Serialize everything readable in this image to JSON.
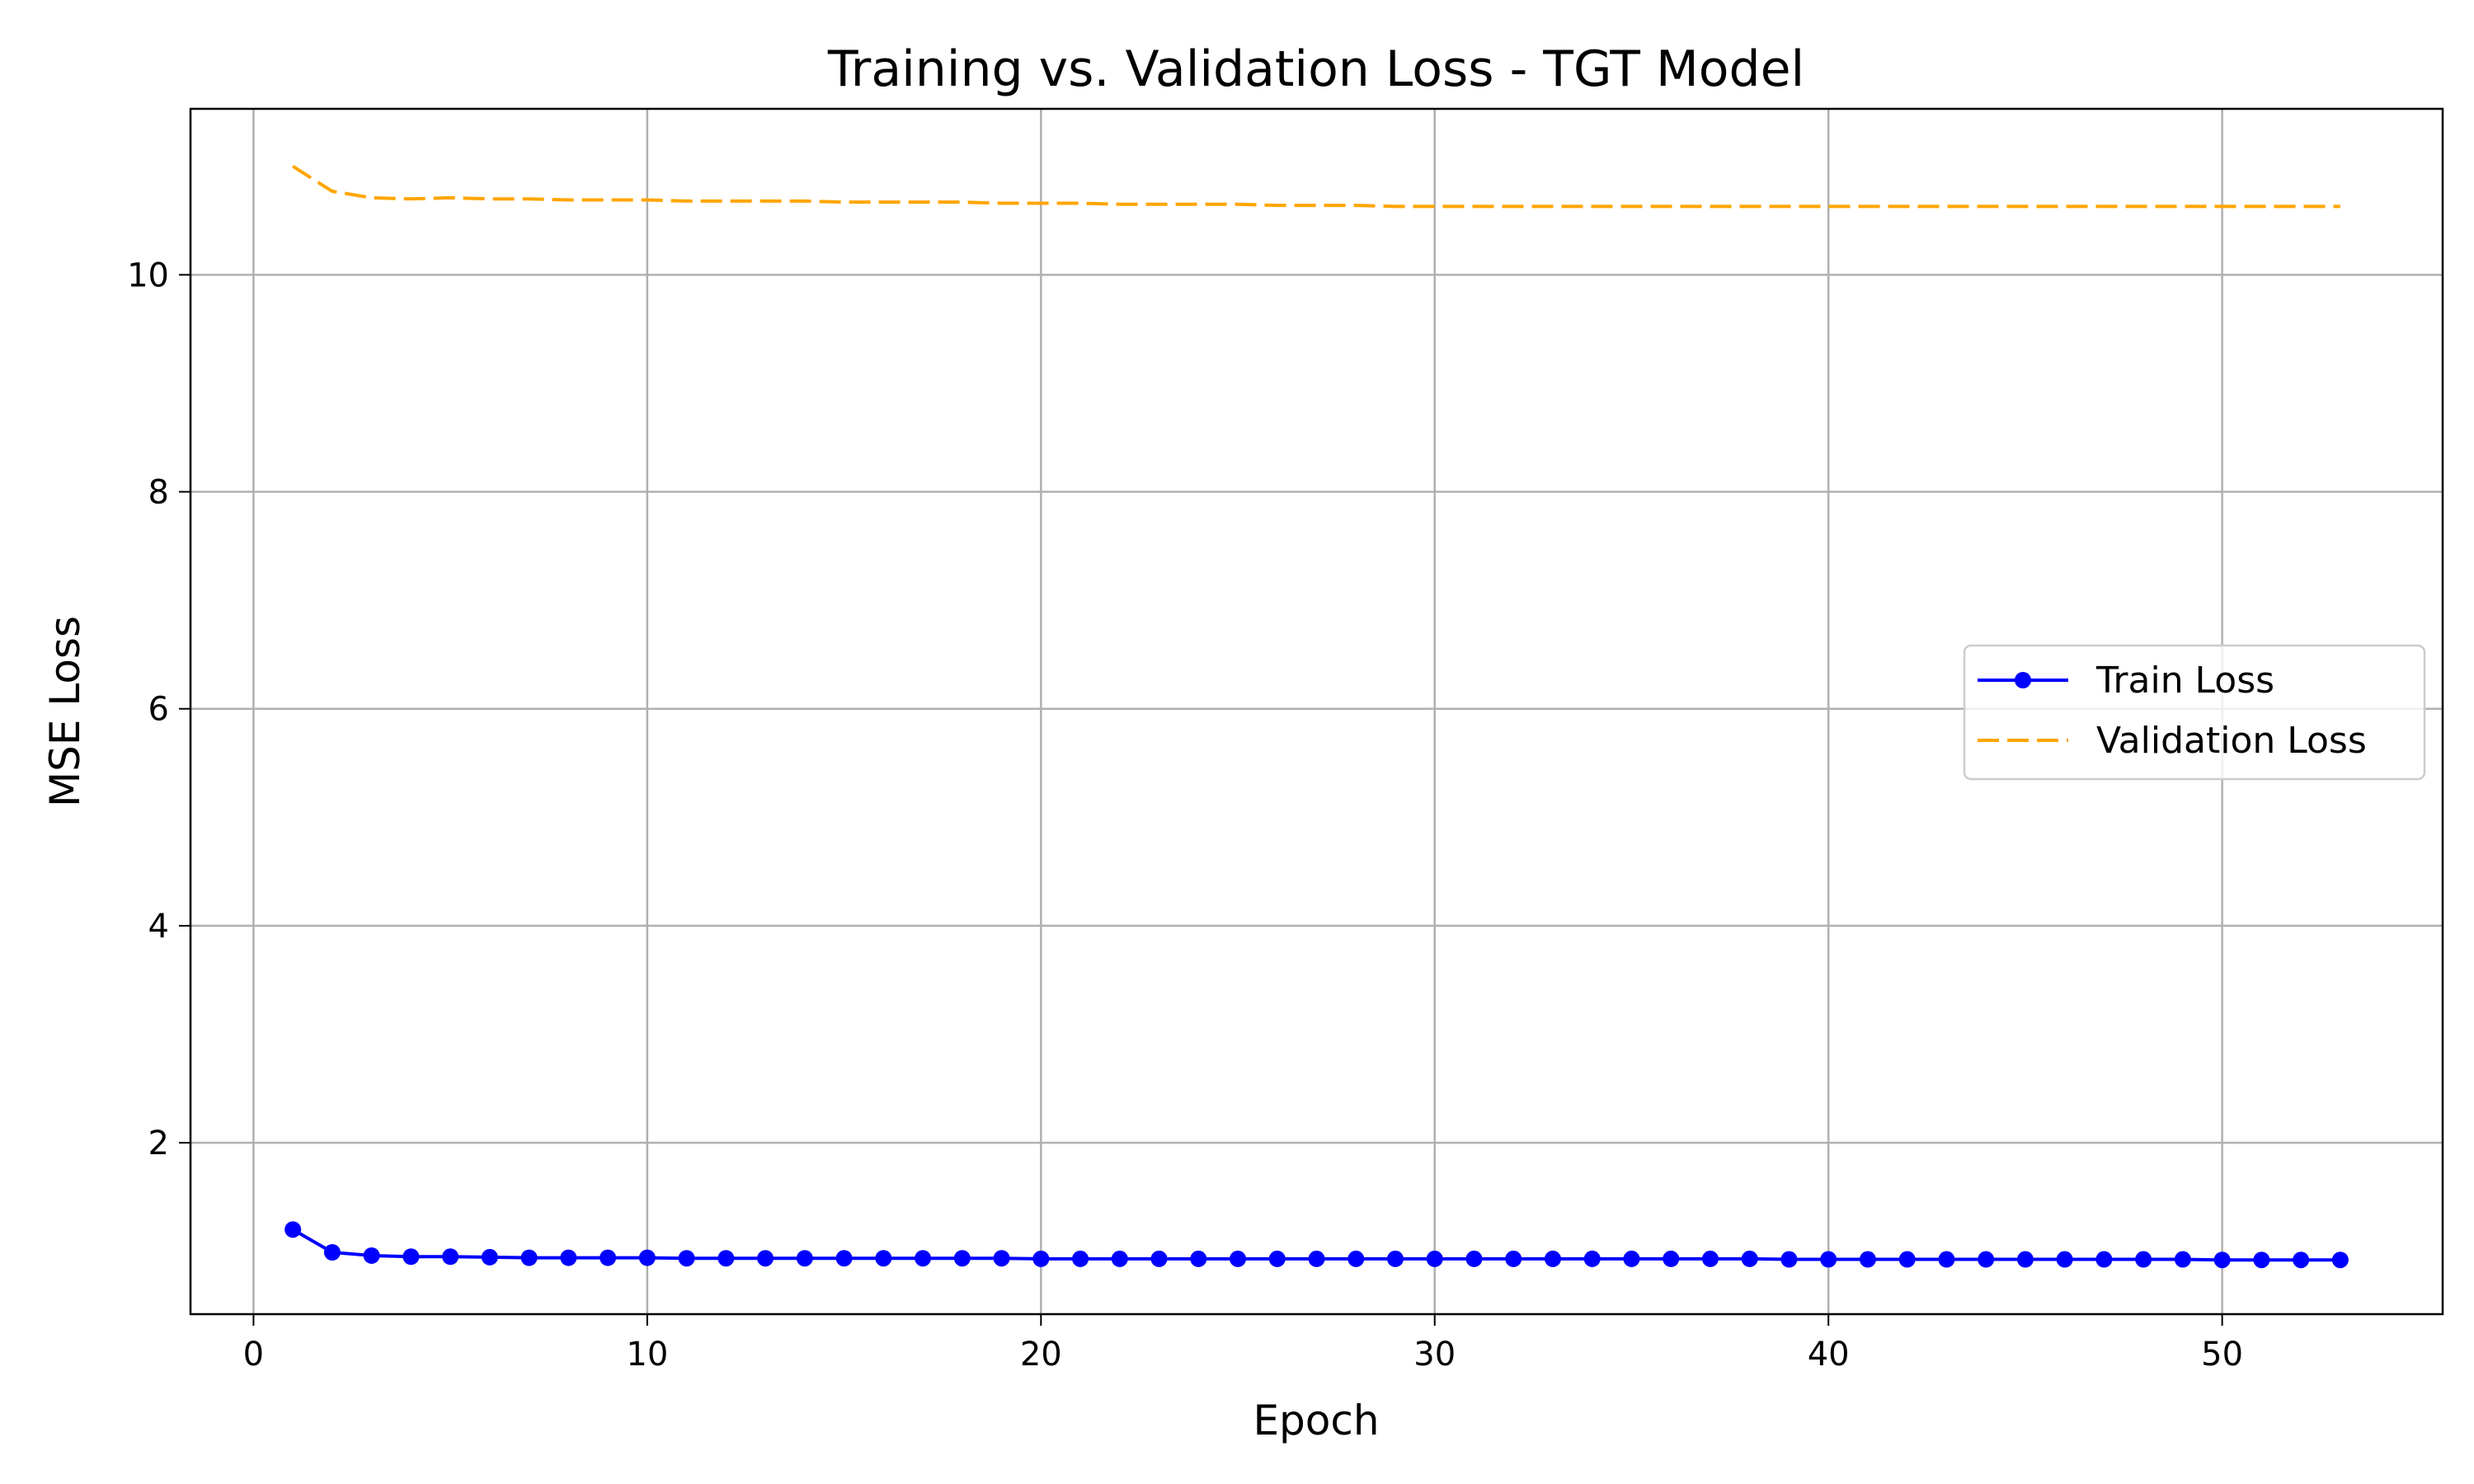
{
  "chart_data": {
    "type": "line",
    "title": "Training vs. Validation Loss - TGT Model",
    "xlabel": "Epoch",
    "ylabel": "MSE Loss",
    "xlim": [
      -1.6,
      55.6
    ],
    "ylim": [
      0.42,
      11.53
    ],
    "xticks": [
      0,
      10,
      20,
      30,
      40,
      50
    ],
    "yticks": [
      2,
      4,
      6,
      8,
      10
    ],
    "xtick_labels": [
      "0",
      "10",
      "20",
      "30",
      "40",
      "50"
    ],
    "ytick_labels": [
      "2",
      "4",
      "6",
      "8",
      "10"
    ],
    "grid": true,
    "legend_position": "center-right",
    "x": [
      1,
      2,
      3,
      4,
      5,
      6,
      7,
      8,
      9,
      10,
      11,
      12,
      13,
      14,
      15,
      16,
      17,
      18,
      19,
      20,
      21,
      22,
      23,
      24,
      25,
      26,
      27,
      28,
      29,
      30,
      31,
      32,
      33,
      34,
      35,
      36,
      37,
      38,
      39,
      40,
      41,
      42,
      43,
      44,
      45,
      46,
      47,
      48,
      49,
      50,
      51,
      52,
      53
    ],
    "series": [
      {
        "name": "Train Loss",
        "color": "#0000ff",
        "style": "solid-with-markers",
        "values": [
          1.2,
          0.99,
          0.96,
          0.95,
          0.95,
          0.945,
          0.94,
          0.94,
          0.94,
          0.94,
          0.935,
          0.935,
          0.935,
          0.935,
          0.935,
          0.935,
          0.935,
          0.935,
          0.935,
          0.93,
          0.93,
          0.93,
          0.93,
          0.93,
          0.93,
          0.93,
          0.93,
          0.93,
          0.93,
          0.93,
          0.93,
          0.93,
          0.93,
          0.93,
          0.93,
          0.93,
          0.93,
          0.93,
          0.925,
          0.925,
          0.925,
          0.925,
          0.925,
          0.925,
          0.925,
          0.925,
          0.925,
          0.925,
          0.925,
          0.92,
          0.92,
          0.92,
          0.92
        ]
      },
      {
        "name": "Validation Loss",
        "color": "#ffa500",
        "style": "dashed",
        "values": [
          11.0,
          10.77,
          10.71,
          10.7,
          10.71,
          10.7,
          10.7,
          10.69,
          10.69,
          10.69,
          10.68,
          10.68,
          10.68,
          10.68,
          10.67,
          10.67,
          10.67,
          10.67,
          10.66,
          10.66,
          10.66,
          10.65,
          10.65,
          10.65,
          10.65,
          10.64,
          10.64,
          10.64,
          10.63,
          10.63,
          10.63,
          10.63,
          10.63,
          10.63,
          10.63,
          10.63,
          10.63,
          10.63,
          10.63,
          10.63,
          10.63,
          10.63,
          10.63,
          10.63,
          10.63,
          10.63,
          10.63,
          10.63,
          10.63,
          10.63,
          10.63,
          10.63,
          10.63
        ]
      }
    ]
  }
}
